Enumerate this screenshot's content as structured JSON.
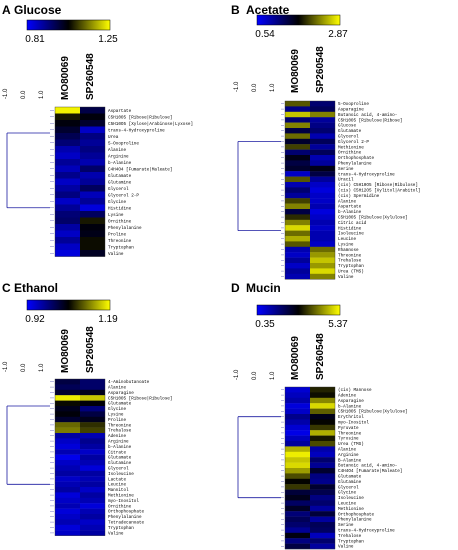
{
  "chart_data": [
    {
      "type": "heatmap",
      "panel": "A",
      "title": "Glucose",
      "colorbar": {
        "min_label": "0.81",
        "max_label": "1.25",
        "colors": [
          "#0000ff",
          "#000000",
          "#ffff00"
        ]
      },
      "columns": [
        "MO80069",
        "SP260548"
      ],
      "dendrogram_axis_ticks": [
        "-1.0",
        "0.0",
        "1.0"
      ],
      "rows": [
        "Aspartate",
        "C5H10O5 [Ribose|Ribulose]",
        "C5H10O5 [Xylose|Arabinose|Lyxose]",
        "trans-4-Hydroxyproline",
        "Urea",
        "5-Oxoproline",
        "Alanine",
        "Arginine",
        "b-Alanine",
        "C4H4O4 [Fumarate|Maleate]",
        "Glutamate",
        "Glutamine",
        "Glycerol",
        "Glycerol 2-P",
        "Glycine",
        "Histidine",
        "Lysine",
        "Ornithine",
        "Phenylalanine",
        "Proline",
        "Threonine",
        "Tryptophan",
        "Valine"
      ],
      "values": [
        [
          1.24,
          0.97
        ],
        [
          1.05,
          1.02
        ],
        [
          1.02,
          0.99
        ],
        [
          0.99,
          0.86
        ],
        [
          0.96,
          0.92
        ],
        [
          0.93,
          0.9
        ],
        [
          0.88,
          0.92
        ],
        [
          0.86,
          0.9
        ],
        [
          0.9,
          0.88
        ],
        [
          0.87,
          0.94
        ],
        [
          0.91,
          0.88
        ],
        [
          0.86,
          0.9
        ],
        [
          0.89,
          0.95
        ],
        [
          0.92,
          0.87
        ],
        [
          0.86,
          0.9
        ],
        [
          0.9,
          0.84
        ],
        [
          0.93,
          0.95
        ],
        [
          0.94,
          1.05
        ],
        [
          0.89,
          1.02
        ],
        [
          0.86,
          1.01
        ],
        [
          0.9,
          1.04
        ],
        [
          0.86,
          1.04
        ],
        [
          0.84,
          1.0
        ]
      ]
    },
    {
      "type": "heatmap",
      "panel": "B",
      "title": "Acetate",
      "colorbar": {
        "min_label": "0.54",
        "max_label": "2.87",
        "colors": [
          "#0000ff",
          "#000000",
          "#ffff00"
        ]
      },
      "columns": [
        "MO80069",
        "SP260548"
      ],
      "dendrogram_axis_ticks": [
        "-1.0",
        "0.0",
        "1.0"
      ],
      "rows": [
        "5-Oxoproline",
        "Asparagine",
        "Butanoic acid, 4-amino-",
        "C5H10O5 [Ribulose|Ribose]",
        "Glucose",
        "Glutamate",
        "Glycerol",
        "Glycerol 2-P",
        "Methionine",
        "Ornithine",
        "Orthophosphate",
        "Phenylalanine",
        "Serine",
        "trans-4-Hydroxyproline",
        "Uracil",
        "(cis) C5H10O5 [Ribose|Ribulose]",
        "(cis) C5H12O5 [Xylitol|Arabitol]",
        "(cis) Spermidine",
        "Alanine",
        "Aspartate",
        "b-Alanine",
        "C5H10O5 [Ribulose|Xylulose]",
        "Citric acid",
        "Histidine",
        "Isoleucine",
        "Leucine",
        "Lysine",
        "Rhamnose",
        "Threonine",
        "Trehalose",
        "Tryptophan",
        "Urea (TMS)",
        "Valine"
      ],
      "values": [
        [
          2.1,
          1.2
        ],
        [
          1.1,
          1.3
        ],
        [
          2.6,
          2.3
        ],
        [
          1.2,
          1.0
        ],
        [
          2.3,
          1.1
        ],
        [
          1.4,
          1.2
        ],
        [
          2.2,
          0.9
        ],
        [
          1.5,
          1.3
        ],
        [
          2.0,
          1.0
        ],
        [
          1.2,
          1.3
        ],
        [
          1.6,
          0.9
        ],
        [
          1.4,
          1.0
        ],
        [
          1.5,
          1.6
        ],
        [
          0.8,
          1.4
        ],
        [
          2.1,
          1.0
        ],
        [
          0.9,
          0.8
        ],
        [
          1.2,
          0.7
        ],
        [
          1.0,
          0.8
        ],
        [
          2.0,
          0.8
        ],
        [
          2.3,
          0.9
        ],
        [
          1.4,
          0.7
        ],
        [
          1.9,
          0.8
        ],
        [
          2.3,
          0.9
        ],
        [
          2.7,
          0.8
        ],
        [
          2.2,
          0.9
        ],
        [
          2.5,
          0.9
        ],
        [
          2.1,
          0.8
        ],
        [
          0.9,
          2.2
        ],
        [
          0.8,
          2.4
        ],
        [
          1.0,
          2.6
        ],
        [
          0.8,
          2.4
        ],
        [
          1.0,
          2.7
        ],
        [
          0.9,
          2.3
        ]
      ]
    },
    {
      "type": "heatmap",
      "panel": "C",
      "title": "Ethanol",
      "colorbar": {
        "min_label": "0.92",
        "max_label": "1.19",
        "colors": [
          "#0000ff",
          "#000000",
          "#ffff00"
        ]
      },
      "columns": [
        "MO80069",
        "SP260548"
      ],
      "dendrogram_axis_ticks": [
        "-1.0",
        "0.0",
        "1.0"
      ],
      "rows": [
        "4-Aminobutanoate",
        "Alanine",
        "Asparagine",
        "C5H10O5 [Ribose|Ribulose]",
        "Glutamate",
        "Glycine",
        "Lysine",
        "Proline",
        "Threonine",
        "Trehalose",
        "Adenine",
        "Arginine",
        "b-Alanine",
        "Citrate",
        "Glutamate",
        "Glutamine",
        "Glycerol",
        "Isoleucine",
        "Lactate",
        "Leucine",
        "Mannitol",
        "Methionine",
        "myo-Inositol",
        "Ornithine",
        "Orthophosphate",
        "Phenylalanine",
        "Tetradecanoate",
        "Tryptophan",
        "Valine"
      ],
      "values": [
        [
          1.02,
          1.0
        ],
        [
          1.01,
          1.0
        ],
        [
          1.03,
          1.04
        ],
        [
          1.18,
          1.16
        ],
        [
          1.06,
          1.05
        ],
        [
          1.04,
          0.99
        ],
        [
          1.05,
          1.02
        ],
        [
          1.03,
          1.04
        ],
        [
          1.11,
          1.08
        ],
        [
          1.12,
          1.09
        ],
        [
          0.97,
          0.96
        ],
        [
          0.95,
          0.98
        ],
        [
          0.94,
          0.97
        ],
        [
          0.96,
          0.95
        ],
        [
          0.93,
          0.97
        ],
        [
          0.95,
          0.96
        ],
        [
          0.96,
          0.94
        ],
        [
          0.97,
          0.97
        ],
        [
          0.95,
          0.96
        ],
        [
          0.96,
          0.97
        ],
        [
          0.97,
          0.95
        ],
        [
          0.94,
          0.97
        ],
        [
          0.95,
          0.96
        ],
        [
          0.96,
          0.94
        ],
        [
          0.94,
          0.96
        ],
        [
          0.95,
          0.97
        ],
        [
          0.96,
          0.95
        ],
        [
          0.94,
          0.96
        ],
        [
          0.95,
          0.97
        ]
      ]
    },
    {
      "type": "heatmap",
      "panel": "D",
      "title": "Mucin",
      "colorbar": {
        "min_label": "0.35",
        "max_label": "5.37",
        "colors": [
          "#0000ff",
          "#000000",
          "#ffff00"
        ]
      },
      "columns": [
        "MO80069",
        "SP260548"
      ],
      "dendrogram_axis_ticks": [
        "-1.0",
        "0.0",
        "1.0"
      ],
      "rows": [
        "(cis) Mannose",
        "Adenine",
        "Asparagine",
        "b-Alanine",
        "C5H10O5 [Ribulose|Xylulose]",
        "Erythritol",
        "myo-Inositol",
        "Pyruvate",
        "Threonine",
        "Tyrosine",
        "Urea (TMS)",
        "Alanine",
        "Arginine",
        "B-Alanine",
        "Butanoic acid, 4-amino-",
        "C4H4O4 [Fumarate|Maleate]",
        "Glutamate",
        "Glutamine",
        "Glycerol",
        "Glycine",
        "Isoleucine",
        "Leucine",
        "Methionine",
        "Orthophosphate",
        "Phenylalanine",
        "Serine",
        "trans-4-Hydroxyproline",
        "Trehalose",
        "Tryptophan",
        "Valine"
      ],
      "values": [
        [
          0.8,
          3.2
        ],
        [
          1.0,
          3.0
        ],
        [
          1.2,
          4.2
        ],
        [
          0.7,
          5.0
        ],
        [
          0.9,
          3.8
        ],
        [
          1.5,
          2.6
        ],
        [
          1.2,
          2.9
        ],
        [
          0.8,
          3.4
        ],
        [
          0.6,
          4.6
        ],
        [
          1.0,
          3.1
        ],
        [
          1.3,
          3.6
        ],
        [
          4.6,
          1.2
        ],
        [
          5.2,
          1.0
        ],
        [
          4.8,
          1.8
        ],
        [
          5.0,
          1.4
        ],
        [
          4.4,
          2.4
        ],
        [
          3.6,
          1.6
        ],
        [
          2.9,
          1.5
        ],
        [
          3.4,
          2.4
        ],
        [
          2.3,
          2.1
        ],
        [
          2.6,
          1.6
        ],
        [
          1.9,
          1.8
        ],
        [
          2.5,
          1.3
        ],
        [
          1.7,
          2.3
        ],
        [
          2.0,
          1.3
        ],
        [
          1.8,
          2.0
        ],
        [
          1.4,
          1.9
        ],
        [
          2.7,
          1.0
        ],
        [
          1.6,
          1.8
        ],
        [
          2.2,
          1.3
        ]
      ]
    }
  ]
}
